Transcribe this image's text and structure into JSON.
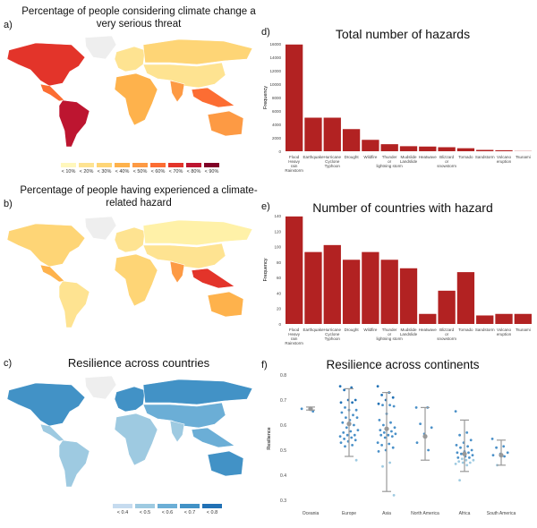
{
  "panels": {
    "a": {
      "letter": "a)",
      "title": "Percentage of people considering climate change a very serious threat",
      "legend": [
        {
          "label": "< 10%",
          "color": "#fff7bc"
        },
        {
          "label": "< 20%",
          "color": "#fee391"
        },
        {
          "label": "< 30%",
          "color": "#fed576"
        },
        {
          "label": "< 40%",
          "color": "#feb24c"
        },
        {
          "label": "< 50%",
          "color": "#fd9a44"
        },
        {
          "label": "< 60%",
          "color": "#fc6d33"
        },
        {
          "label": "< 70%",
          "color": "#e3342a"
        },
        {
          "label": "< 80%",
          "color": "#bd1530"
        },
        {
          "label": "< 90%",
          "color": "#800026"
        }
      ],
      "region_colors": {
        "greenland": "#eeeeee",
        "north_america": "#e3342a",
        "central_america": "#fc6d33",
        "south_america": "#bd1530",
        "europe": "#fee391",
        "africa": "#feb24c",
        "russia": "#fed576",
        "asia": "#fee391",
        "india": "#fd9a44",
        "southeast_asia": "#fc6d33",
        "australia": "#fd9a44"
      }
    },
    "b": {
      "letter": "b)",
      "title": "Percentage of people having experienced a climate-related hazard",
      "region_colors": {
        "greenland": "#eeeeee",
        "north_america": "#fed576",
        "central_america": "#feb24c",
        "south_america": "#fee391",
        "europe": "#fee391",
        "africa": "#fed576",
        "russia": "#fff1a8",
        "asia": "#fee391",
        "india": "#fd9a44",
        "southeast_asia": "#e3342a",
        "australia": "#feb24c"
      }
    },
    "c": {
      "letter": "c)",
      "title": "Resilience across countries",
      "legend": [
        {
          "label": "< 0.4",
          "color": "#c6dbef"
        },
        {
          "label": "< 0.5",
          "color": "#9ecae1"
        },
        {
          "label": "< 0.6",
          "color": "#6baed6"
        },
        {
          "label": "< 0.7",
          "color": "#4292c6"
        },
        {
          "label": "< 0.8",
          "color": "#2171b5"
        }
      ],
      "region_colors": {
        "greenland": "#eeeeee",
        "north_america": "#4292c6",
        "central_america": "#9ecae1",
        "south_america": "#9ecae1",
        "europe": "#4292c6",
        "africa": "#9ecae1",
        "russia": "#4292c6",
        "asia": "#6baed6",
        "india": "#9ecae1",
        "southeast_asia": "#6baed6",
        "australia": "#4292c6"
      }
    }
  },
  "chart_data": [
    {
      "letter": "d)",
      "type": "bar",
      "title": "Total number of hazards",
      "xlabel": "",
      "ylabel": "Frequency",
      "ylim": [
        0,
        16000
      ],
      "yticks": [
        0,
        2000,
        4000,
        6000,
        8000,
        10000,
        12000,
        14000,
        16000
      ],
      "categories": [
        "Flood Heavy rain Rainstorm",
        "Earthquake",
        "Hurricane Cyclone Typhoon",
        "Drought",
        "Wildfire",
        "Thunder or lightning storm",
        "Mudslide Landslide",
        "Heatwave",
        "Blizzard or snowstorm",
        "Tornado",
        "Sandstorm",
        "Volcano eruption",
        "Tsunami"
      ],
      "values": [
        15900,
        5000,
        5000,
        3300,
        1700,
        1050,
        750,
        700,
        600,
        450,
        200,
        150,
        30
      ],
      "color": "#b22222",
      "grid": false
    },
    {
      "letter": "e)",
      "type": "bar",
      "title": "Number of countries with hazard",
      "xlabel": "",
      "ylabel": "Frequency",
      "ylim": [
        0,
        140
      ],
      "yticks": [
        0,
        20,
        40,
        60,
        80,
        100,
        120,
        140
      ],
      "categories": [
        "Flood Heavy rain Rainstorm",
        "Earthquake",
        "Hurricane Cyclone Typhoon",
        "Drought",
        "Wildfire",
        "Thunder or lightning storm",
        "Mudslide Landslide",
        "Heatwave",
        "Blizzard or snowstorm",
        "Tornado",
        "Sandstorm",
        "Volcano eruption",
        "Tsunami"
      ],
      "values": [
        139,
        93,
        102,
        83,
        93,
        83,
        72,
        13,
        43,
        67,
        11,
        13,
        13
      ],
      "color": "#b22222",
      "grid": false
    },
    {
      "letter": "f)",
      "type": "scatter",
      "title": "Resilience across continents",
      "xlabel": "",
      "ylabel": "Resilience",
      "ylim": [
        0.3,
        0.8
      ],
      "yticks": [
        0.3,
        0.4,
        0.5,
        0.6,
        0.7,
        0.8
      ],
      "categories": [
        "Oceania",
        "Europe",
        "Asia",
        "North America",
        "Africa",
        "South America"
      ],
      "means": [
        0.665,
        0.605,
        0.585,
        0.555,
        0.485,
        0.48
      ],
      "error_low": [
        0.66,
        0.475,
        0.335,
        0.46,
        0.415,
        0.44
      ],
      "error_high": [
        0.672,
        0.745,
        0.73,
        0.67,
        0.62,
        0.54
      ],
      "points": [
        [
          0.665,
          0.655
        ],
        [
          0.755,
          0.75,
          0.74,
          0.7,
          0.7,
          0.69,
          0.69,
          0.67,
          0.66,
          0.66,
          0.65,
          0.64,
          0.63,
          0.63,
          0.62,
          0.61,
          0.6,
          0.59,
          0.58,
          0.575,
          0.57,
          0.56,
          0.56,
          0.555,
          0.55,
          0.545,
          0.54,
          0.535,
          0.53,
          0.52,
          0.515,
          0.46
        ],
        [
          0.755,
          0.73,
          0.72,
          0.71,
          0.7,
          0.685,
          0.68,
          0.68,
          0.675,
          0.645,
          0.62,
          0.61,
          0.6,
          0.59,
          0.585,
          0.58,
          0.575,
          0.57,
          0.565,
          0.56,
          0.56,
          0.555,
          0.55,
          0.53,
          0.525,
          0.52,
          0.51,
          0.5,
          0.495,
          0.45,
          0.435,
          0.32
        ],
        [
          0.67,
          0.67,
          0.605,
          0.59,
          0.565,
          0.53,
          0.5
        ],
        [
          0.655,
          0.57,
          0.56,
          0.54,
          0.53,
          0.52,
          0.515,
          0.51,
          0.5,
          0.495,
          0.49,
          0.49,
          0.485,
          0.48,
          0.475,
          0.47,
          0.47,
          0.465,
          0.46,
          0.46,
          0.455,
          0.45,
          0.45,
          0.445,
          0.44,
          0.38
        ],
        [
          0.545,
          0.515,
          0.51,
          0.49,
          0.485,
          0.48,
          0.475,
          0.44
        ]
      ],
      "point_color": "#4a90c8",
      "mean_color": "#999999"
    }
  ]
}
